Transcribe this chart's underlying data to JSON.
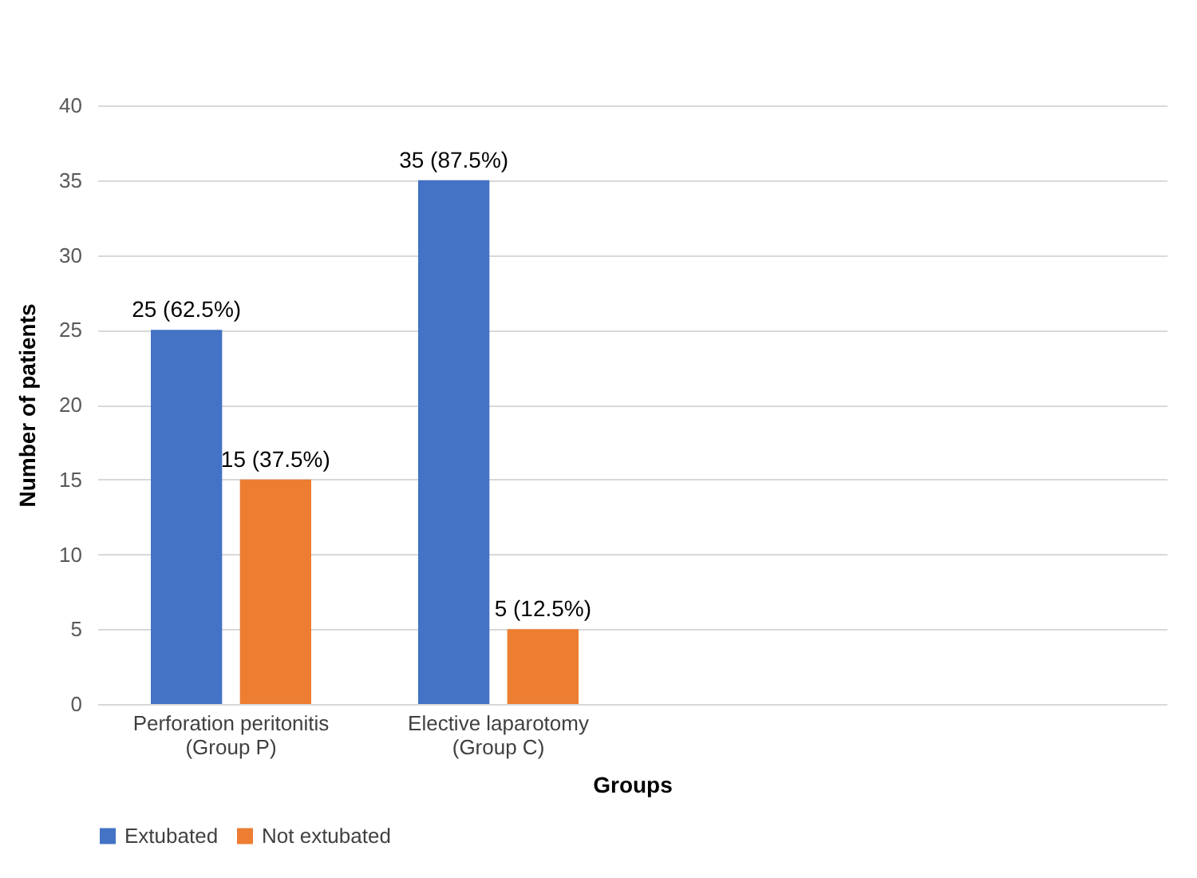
{
  "chart_data": {
    "type": "bar",
    "xlabel": "Groups",
    "ylabel": "Number of patients",
    "categories": [
      "Perforation peritonitis\n(Group P)",
      "Elective laparotomy\n(Group C)",
      null,
      null
    ],
    "series": [
      {
        "name": "Extubated",
        "color": "#4472c4",
        "values": [
          25,
          35,
          null,
          null
        ],
        "value_labels": [
          "25 (62.5%)",
          "35 (87.5%)",
          null,
          null
        ]
      },
      {
        "name": "Not extubated",
        "color": "#ed7d31",
        "values": [
          15,
          5,
          null,
          null
        ],
        "value_labels": [
          "15 (37.5%)",
          "5 (12.5%)",
          null,
          null
        ]
      }
    ],
    "ylim": [
      0,
      40
    ],
    "yticks": [
      0,
      5,
      10,
      15,
      20,
      25,
      30,
      35,
      40
    ],
    "grid": "y",
    "legend": "bottom"
  }
}
